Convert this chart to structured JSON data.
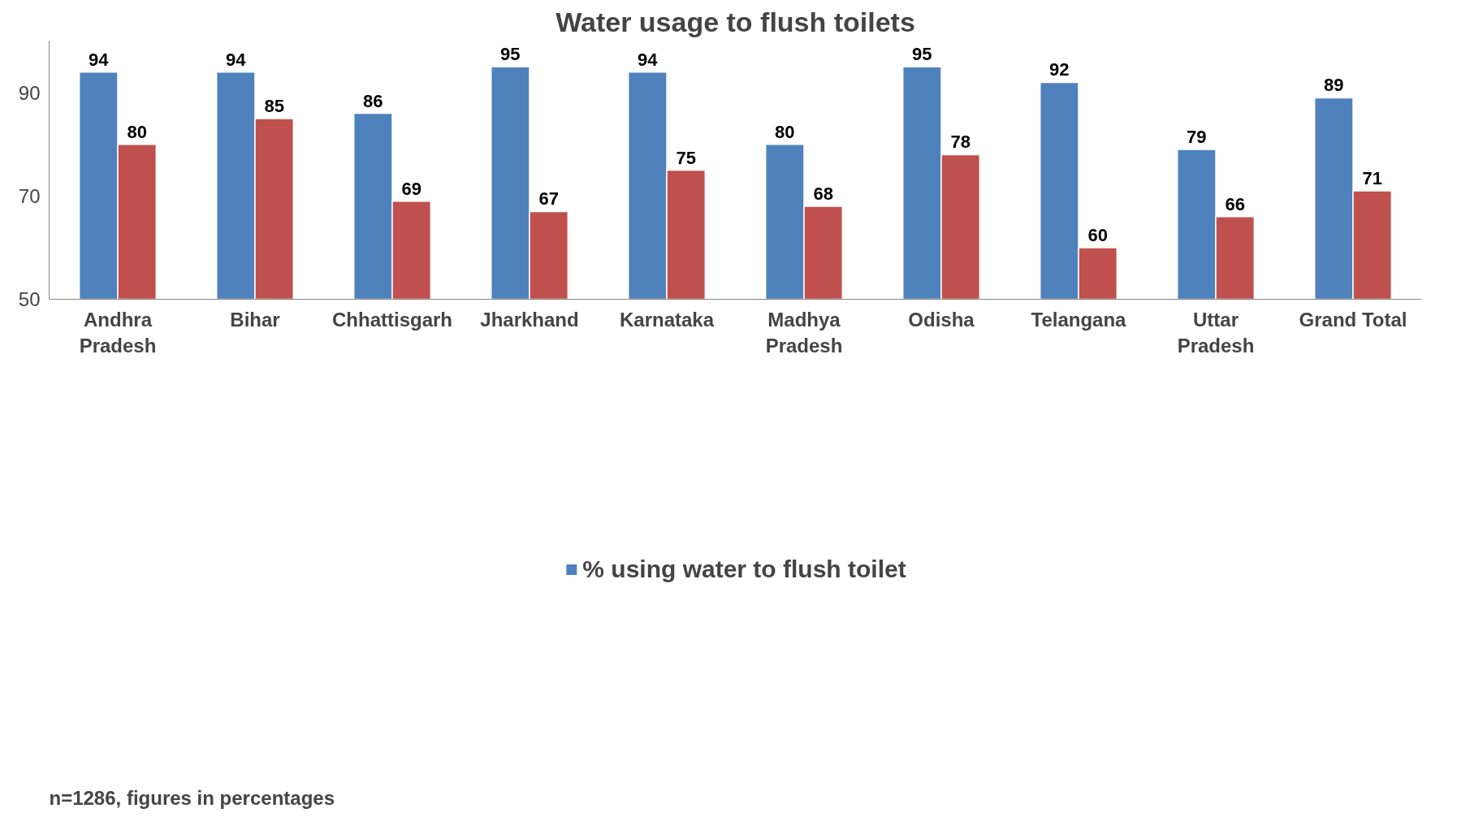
{
  "chart_data": {
    "type": "bar",
    "title": "Water usage to flush toilets",
    "categories": [
      "Andhra Pradesh",
      "Bihar",
      "Chhattisgarh",
      "Jharkhand",
      "Karnataka",
      "Madhya Pradesh",
      "Odisha",
      "Telangana",
      "Uttar Pradesh",
      "Grand Total"
    ],
    "series": [
      {
        "name": "% using water to flush toilet",
        "color": "#4f81bd",
        "values": [
          94,
          94,
          86,
          95,
          94,
          80,
          95,
          92,
          79,
          89
        ]
      },
      {
        "color": "#c0504d",
        "values": [
          80,
          85,
          69,
          67,
          75,
          68,
          78,
          60,
          66,
          71
        ]
      }
    ],
    "ylim": [
      50,
      100
    ],
    "yticks": [
      50,
      70,
      90
    ],
    "grid": false,
    "data_labels": true,
    "legend": "bottom",
    "annotations": [
      "n=1286, figures in  percentages"
    ]
  }
}
